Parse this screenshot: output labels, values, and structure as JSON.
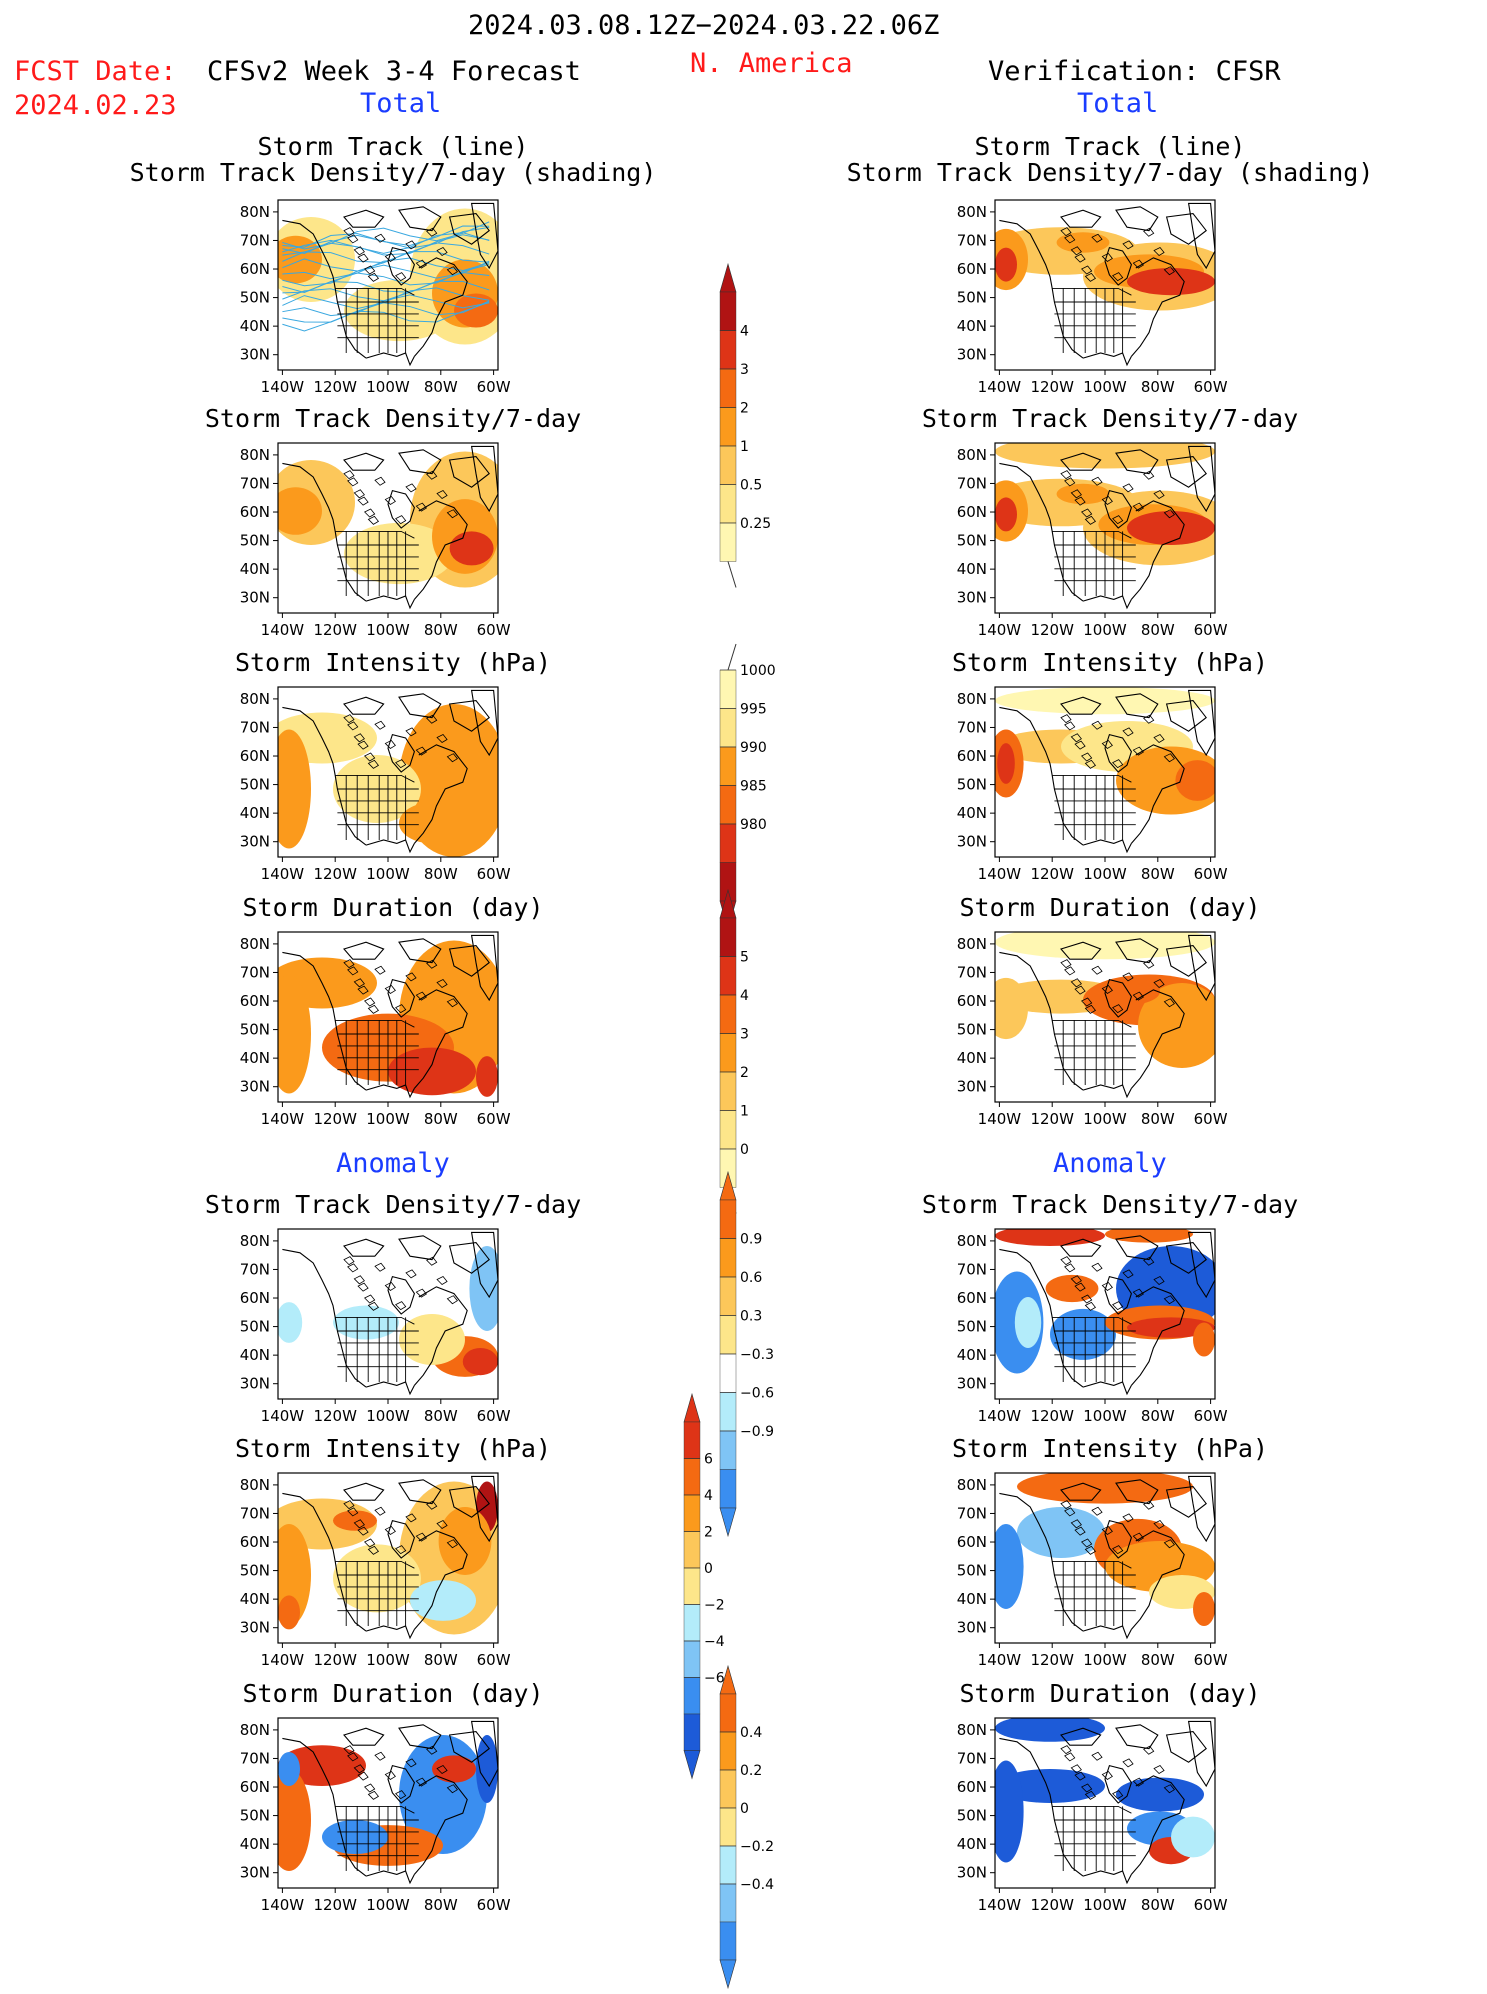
{
  "header": {
    "date_range": "2024.03.08.12Z−2024.03.22.06Z",
    "fcst_label": "FCST Date:",
    "fcst_date": "2024.02.23",
    "model_title": "CFSv2 Week 3-4 Forecast",
    "region": "N. America",
    "verification": "Verification: CFSR"
  },
  "sections": {
    "total_left": "Total",
    "total_right": "Total",
    "anomaly_left": "Anomaly",
    "anomaly_right": "Anomaly"
  },
  "panel_titles": {
    "track_line": "Storm Track (line)",
    "track_shading": "Storm Track Density/7-day (shading)",
    "density": "Storm Track Density/7-day",
    "intensity": "Storm Intensity (hPa)",
    "duration": "Storm Duration (day)"
  },
  "axes": {
    "lat_labels": [
      "80N",
      "70N",
      "60N",
      "50N",
      "40N",
      "30N"
    ],
    "lon_labels": [
      "140W",
      "120W",
      "100W",
      "80W",
      "60W"
    ]
  },
  "colorbars": {
    "density_total": [
      "0.25",
      "0.5",
      "1",
      "2",
      "3",
      "4"
    ],
    "intensity_total": [
      "1000",
      "995",
      "990",
      "985",
      "980"
    ],
    "duration_total": [
      "0",
      "1",
      "2",
      "3",
      "4",
      "5"
    ],
    "density_anom": [
      "0.9",
      "0.6",
      "0.3",
      "−0.3",
      "−0.6",
      "−0.9"
    ],
    "intensity_anom": [
      "6",
      "4",
      "2",
      "0",
      "−2",
      "−4",
      "−6"
    ],
    "duration_anom": [
      "0.4",
      "0.2",
      "0",
      "−0.2",
      "−0.4"
    ]
  },
  "colors": {
    "pale_yellow": "#fff7b2",
    "light_yellow": "#fde68a",
    "light_orange": "#fcc75a",
    "orange": "#fb9a1c",
    "dark_orange": "#f46a12",
    "red": "#de3417",
    "dark_red": "#b01313",
    "light_blue": "#b3ecfa",
    "mid_blue": "#7fc4f5",
    "blue": "#3a8ef0",
    "dark_blue": "#1d5bd8",
    "track_line": "#3aa8e0"
  }
}
